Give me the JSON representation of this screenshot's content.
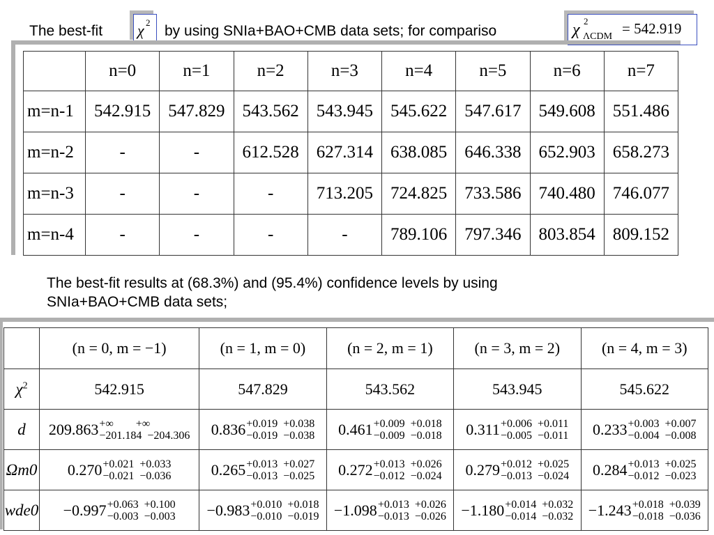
{
  "header": {
    "text_before": "The best-fit",
    "chi_symbol": "χ",
    "chi_sup": "2",
    "text_after": "by using SNIa+BAO+CMB data sets; for compariso",
    "lcdm_sub": "ΛCDM",
    "lcdm_value": "= 542.919"
  },
  "table1": {
    "columns": [
      "",
      "n=0",
      "n=1",
      "n=2",
      "n=3",
      "n=4",
      "n=5",
      "n=6",
      "n=7"
    ],
    "rows": [
      {
        "label": "m=n-1",
        "cells": [
          "542.915",
          "547.829",
          "543.562",
          "543.945",
          "545.622",
          "547.617",
          "549.608",
          "551.486"
        ]
      },
      {
        "label": "m=n-2",
        "cells": [
          "-",
          "-",
          "612.528",
          "627.314",
          "638.085",
          "646.338",
          "652.903",
          "658.273"
        ]
      },
      {
        "label": "m=n-3",
        "cells": [
          "-",
          "-",
          "-",
          "713.205",
          "724.825",
          "733.586",
          "740.480",
          "746.077"
        ]
      },
      {
        "label": "m=n-4",
        "cells": [
          "-",
          "-",
          "-",
          "-",
          "789.106",
          "797.346",
          "803.854",
          "809.152"
        ]
      }
    ]
  },
  "paragraph": {
    "line1": "The best-fit results at  (68.3%) and (95.4%) confidence levels by using",
    "line2": "SNIa+BAO+CMB data sets;"
  },
  "table2": {
    "columns": [
      "(n = 0, m = −1)",
      "(n = 1, m = 0)",
      "(n = 2, m = 1)",
      "(n = 3, m = 2)",
      "(n = 4, m = 3)"
    ],
    "chi_label": "χ",
    "chi_sup": "2",
    "chi_values": [
      "542.915",
      "547.829",
      "543.562",
      "543.945",
      "545.622"
    ],
    "rows": [
      {
        "label": "d",
        "cells": [
          {
            "v": "209.863",
            "u": "+∞        +∞",
            "l": "−201.184  −204.306"
          },
          {
            "v": "0.836",
            "u": "+0.019  +0.038",
            "l": "−0.019  −0.038"
          },
          {
            "v": "0.461",
            "u": "+0.009  +0.018",
            "l": "−0.009  −0.018"
          },
          {
            "v": "0.311",
            "u": "+0.006  +0.011",
            "l": "−0.005  −0.011"
          },
          {
            "v": "0.233",
            "u": "+0.003  +0.007",
            "l": "−0.004  −0.008"
          }
        ]
      },
      {
        "label": "Ωm0",
        "cells": [
          {
            "v": "0.270",
            "u": "+0.021  +0.033",
            "l": "−0.021  −0.036"
          },
          {
            "v": "0.265",
            "u": "+0.013  +0.027",
            "l": "−0.013  −0.025"
          },
          {
            "v": "0.272",
            "u": "+0.013  +0.026",
            "l": "−0.012  −0.024"
          },
          {
            "v": "0.279",
            "u": "+0.012  +0.025",
            "l": "−0.013  −0.024"
          },
          {
            "v": "0.284",
            "u": "+0.013  +0.025",
            "l": "−0.012  −0.023"
          }
        ]
      },
      {
        "label": "wde0",
        "cells": [
          {
            "v": "−0.997",
            "u": "+0.063  +0.100",
            "l": "−0.003  −0.003"
          },
          {
            "v": "−0.983",
            "u": "+0.010  +0.018",
            "l": "−0.010  −0.019"
          },
          {
            "v": "−1.098",
            "u": "+0.013  +0.026",
            "l": "−0.013  −0.026"
          },
          {
            "v": "−1.180",
            "u": "+0.014  +0.032",
            "l": "−0.014  −0.032"
          },
          {
            "v": "−1.243",
            "u": "+0.018  +0.039",
            "l": "−0.018  −0.036"
          }
        ]
      }
    ]
  }
}
